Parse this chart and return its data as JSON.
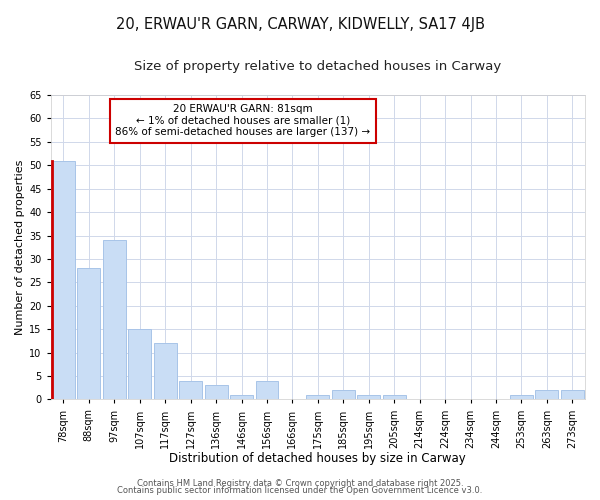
{
  "title1": "20, ERWAU'R GARN, CARWAY, KIDWELLY, SA17 4JB",
  "title2": "Size of property relative to detached houses in Carway",
  "xlabel": "Distribution of detached houses by size in Carway",
  "ylabel": "Number of detached properties",
  "categories": [
    "78sqm",
    "88sqm",
    "97sqm",
    "107sqm",
    "117sqm",
    "127sqm",
    "136sqm",
    "146sqm",
    "156sqm",
    "166sqm",
    "175sqm",
    "185sqm",
    "195sqm",
    "205sqm",
    "214sqm",
    "224sqm",
    "234sqm",
    "244sqm",
    "253sqm",
    "263sqm",
    "273sqm"
  ],
  "values": [
    51,
    28,
    34,
    15,
    12,
    4,
    3,
    1,
    4,
    0,
    1,
    2,
    1,
    1,
    0,
    0,
    0,
    0,
    1,
    2,
    2
  ],
  "bar_color": "#c9ddf5",
  "bar_edge_color": "#a8c4e8",
  "highlight_index": 0,
  "highlight_edge_color": "#cc0000",
  "annotation_box_color": "#ffffff",
  "annotation_edge_color": "#cc0000",
  "annotation_text": "20 ERWAU'R GARN: 81sqm\n← 1% of detached houses are smaller (1)\n86% of semi-detached houses are larger (137) →",
  "ylim": [
    0,
    65
  ],
  "yticks": [
    0,
    5,
    10,
    15,
    20,
    25,
    30,
    35,
    40,
    45,
    50,
    55,
    60,
    65
  ],
  "footer1": "Contains HM Land Registry data © Crown copyright and database right 2025.",
  "footer2": "Contains public sector information licensed under the Open Government Licence v3.0.",
  "background_color": "#ffffff",
  "grid_color": "#d0d8ea",
  "title1_fontsize": 10.5,
  "title2_fontsize": 9.5,
  "xlabel_fontsize": 8.5,
  "ylabel_fontsize": 8,
  "tick_fontsize": 7,
  "footer_fontsize": 6,
  "ann_fontsize": 7.5
}
